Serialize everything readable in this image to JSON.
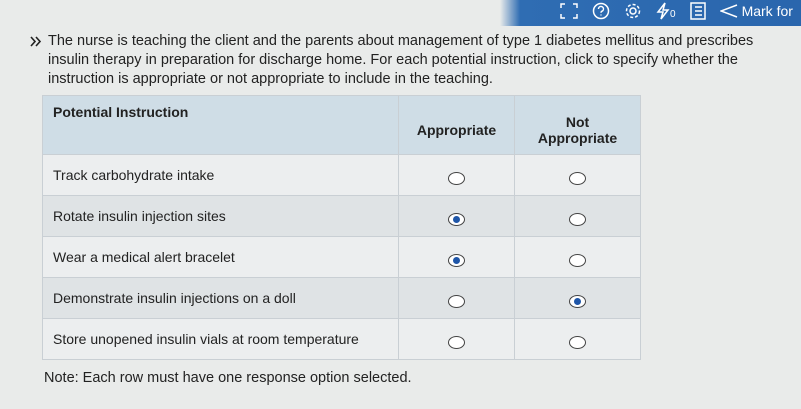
{
  "toolbar": {
    "icons": [
      "fullscreen-icon",
      "help-icon",
      "settings-icon",
      "flash-icon",
      "notebook-icon",
      "flag-icon"
    ],
    "flash_count": "0",
    "mark_label": "Mark for"
  },
  "question": "The nurse is teaching the client and the parents about management of type 1 diabetes mellitus and prescribes insulin therapy in preparation for discharge home.  For each potential instruction, click to specify whether the instruction is appropriate or not appropriate to include in the teaching.",
  "table": {
    "headers": [
      "Potential Instruction",
      "Appropriate",
      "Not Appropriate"
    ],
    "rows": [
      {
        "label": "Track carbohydrate intake",
        "selected": null
      },
      {
        "label": "Rotate insulin injection sites",
        "selected": "Appropriate"
      },
      {
        "label": "Wear a medical alert bracelet",
        "selected": "Appropriate"
      },
      {
        "label": "Demonstrate insulin injections on a doll",
        "selected": "Not Appropriate"
      },
      {
        "label": "Store unopened insulin vials at room temperature",
        "selected": null
      }
    ]
  },
  "note": "Note:  Each row must have one response option selected.",
  "colors": {
    "toolbar": "#2a66ad",
    "header": "#cfdde6",
    "radio_selected": "#1f56a8"
  }
}
